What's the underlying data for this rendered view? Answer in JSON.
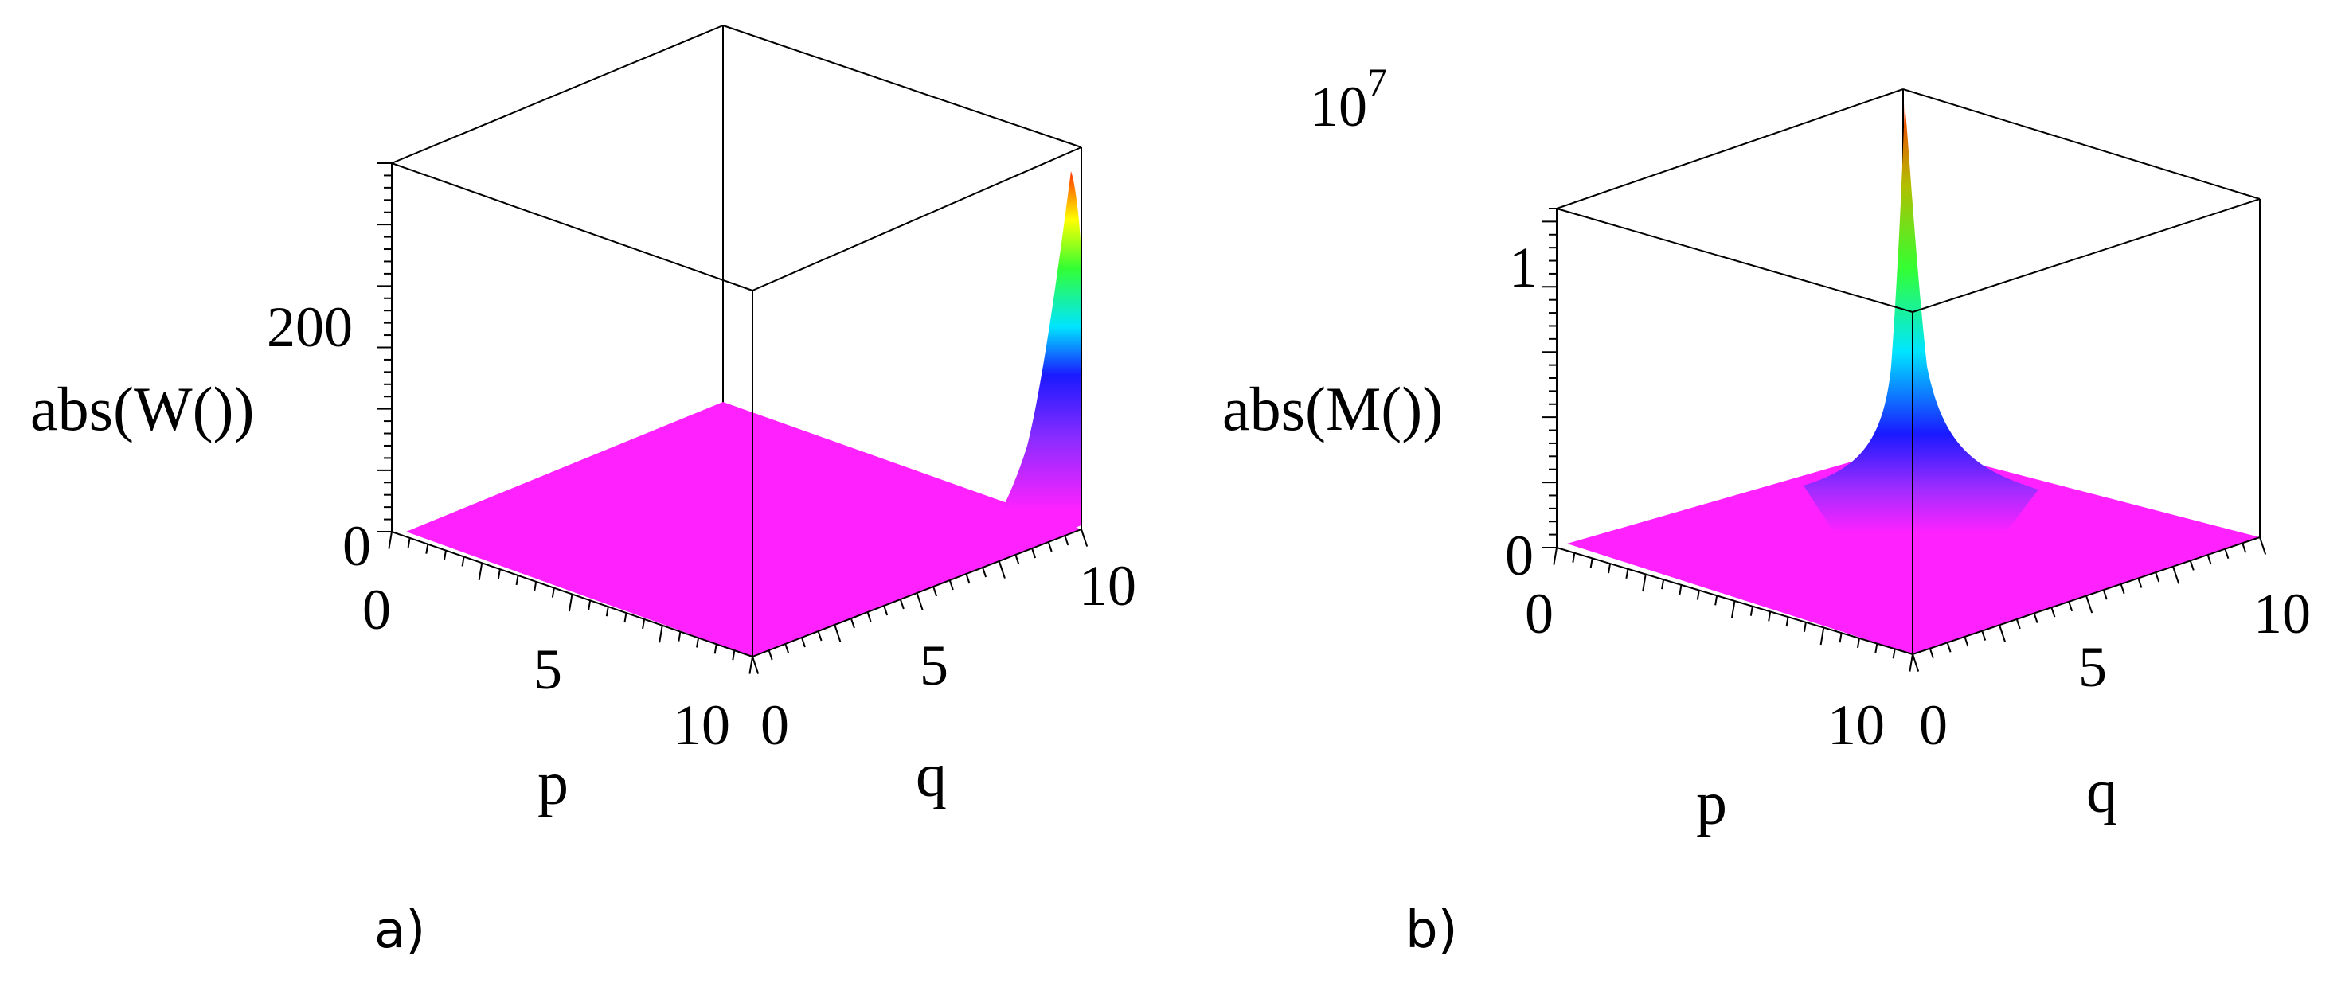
{
  "panels": [
    {
      "id": "a",
      "label": "a)",
      "colors": [
        "#ff22ff",
        "#8a2cff",
        "#1a1aff",
        "#00ffff",
        "#33ff33",
        "#ffff00",
        "#ff3300"
      ],
      "chart_data": {
        "type": "surface",
        "z_label": "abs(W())",
        "x_label": "p",
        "y_label": "q",
        "x_ticks": [
          "0",
          "5",
          "10"
        ],
        "y_ticks": [
          "0",
          "5",
          "10"
        ],
        "z_ticks": [
          "0",
          "200"
        ],
        "xlim": [
          0,
          10
        ],
        "ylim": [
          0,
          10
        ],
        "zlim": [
          0,
          320
        ],
        "z_scale_label": "",
        "surface_profile": {
          "q": [
            0,
            5,
            6,
            7,
            7.5,
            8,
            8.5,
            9,
            9.5,
            10
          ],
          "z_at_p10": [
            0,
            0.5,
            2,
            7,
            14,
            28,
            55,
            100,
            170,
            265
          ]
        }
      }
    },
    {
      "id": "b",
      "label": "b)",
      "colors": [
        "#ff22ff",
        "#8a2cff",
        "#1a1aff",
        "#00ffff",
        "#33ff33",
        "#ffff00",
        "#ff3300"
      ],
      "chart_data": {
        "type": "surface",
        "z_label": "abs(M())",
        "x_label": "p",
        "y_label": "q",
        "x_ticks": [
          "0",
          "10"
        ],
        "y_ticks": [
          "0",
          "5",
          "10"
        ],
        "z_ticks": [
          "0",
          "1"
        ],
        "xlim": [
          0,
          10
        ],
        "ylim": [
          0,
          10
        ],
        "zlim": [
          0,
          1.3
        ],
        "z_scale_label": "10",
        "z_scale_exp": "7",
        "z_units": "×10^7",
        "surface_profile": {
          "distance_from_p10_q0": [
            0,
            0.5,
            1,
            1.5,
            2,
            3,
            4,
            6,
            10
          ],
          "z": [
            1.3,
            0.95,
            0.6,
            0.35,
            0.2,
            0.08,
            0.03,
            0.01,
            0
          ]
        }
      }
    }
  ]
}
